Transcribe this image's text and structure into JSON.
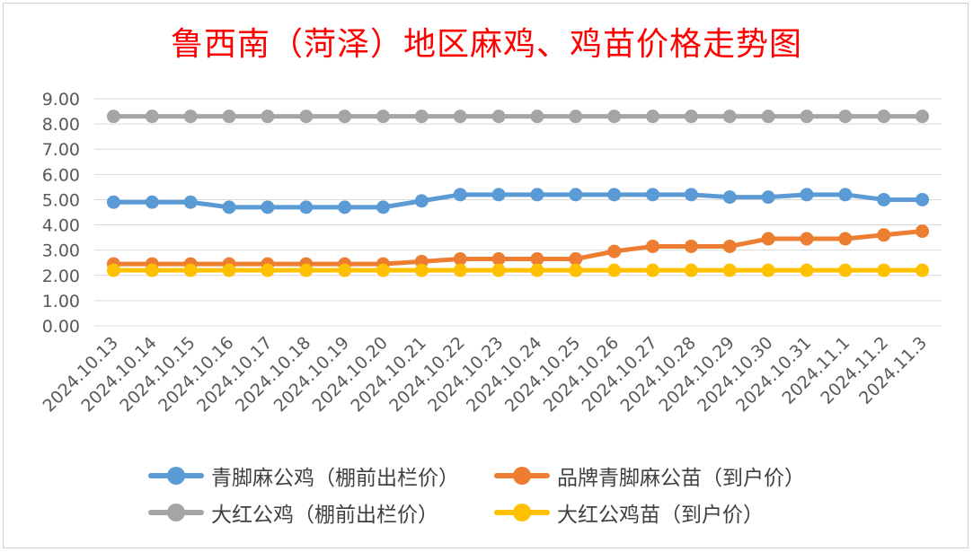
{
  "title": "鲁西南（菏泽）地区麻鸡、鸡苗价格走势图",
  "chart_data": {
    "type": "line",
    "title": "鲁西南（菏泽）地区麻鸡、鸡苗价格走势图",
    "categories": [
      "2024.10.13",
      "2024.10.14",
      "2024.10.15",
      "2024.10.16",
      "2024.10.17",
      "2024.10.18",
      "2024.10.19",
      "2024.10.20",
      "2024.10.21",
      "2024.10.22",
      "2024.10.23",
      "2024.10.24",
      "2024.10.25",
      "2024.10.26",
      "2024.10.27",
      "2024.10.28",
      "2024.10.29",
      "2024.10.30",
      "2024.10.31",
      "2024.11.1",
      "2024.11.2",
      "2024.11.3"
    ],
    "yticks": [
      "0.00",
      "1.00",
      "2.00",
      "3.00",
      "4.00",
      "5.00",
      "6.00",
      "7.00",
      "8.00",
      "9.00"
    ],
    "ylim": [
      0,
      9
    ],
    "grid": true,
    "legend_position": "bottom",
    "series": [
      {
        "name": "青脚麻公鸡（棚前出栏价）",
        "color": "#5b9bd5",
        "values": [
          4.9,
          4.9,
          4.9,
          4.7,
          4.7,
          4.7,
          4.7,
          4.7,
          4.95,
          5.2,
          5.2,
          5.2,
          5.2,
          5.2,
          5.2,
          5.2,
          5.1,
          5.1,
          5.2,
          5.2,
          5.0,
          5.0
        ]
      },
      {
        "name": "品牌青脚麻公苗（到户价）",
        "color": "#ed7d31",
        "values": [
          2.45,
          2.45,
          2.45,
          2.45,
          2.45,
          2.45,
          2.45,
          2.45,
          2.55,
          2.65,
          2.65,
          2.65,
          2.65,
          2.95,
          3.15,
          3.15,
          3.15,
          3.45,
          3.45,
          3.45,
          3.6,
          3.75
        ]
      },
      {
        "name": "大红公鸡（棚前出栏价）",
        "color": "#a5a5a5",
        "values": [
          8.3,
          8.3,
          8.3,
          8.3,
          8.3,
          8.3,
          8.3,
          8.3,
          8.3,
          8.3,
          8.3,
          8.3,
          8.3,
          8.3,
          8.3,
          8.3,
          8.3,
          8.3,
          8.3,
          8.3,
          8.3,
          8.3
        ]
      },
      {
        "name": "大红公鸡苗（到户价）",
        "color": "#ffc000",
        "values": [
          2.2,
          2.2,
          2.2,
          2.2,
          2.2,
          2.2,
          2.2,
          2.2,
          2.2,
          2.2,
          2.2,
          2.2,
          2.2,
          2.2,
          2.2,
          2.2,
          2.2,
          2.2,
          2.2,
          2.2,
          2.2,
          2.2
        ]
      }
    ]
  }
}
